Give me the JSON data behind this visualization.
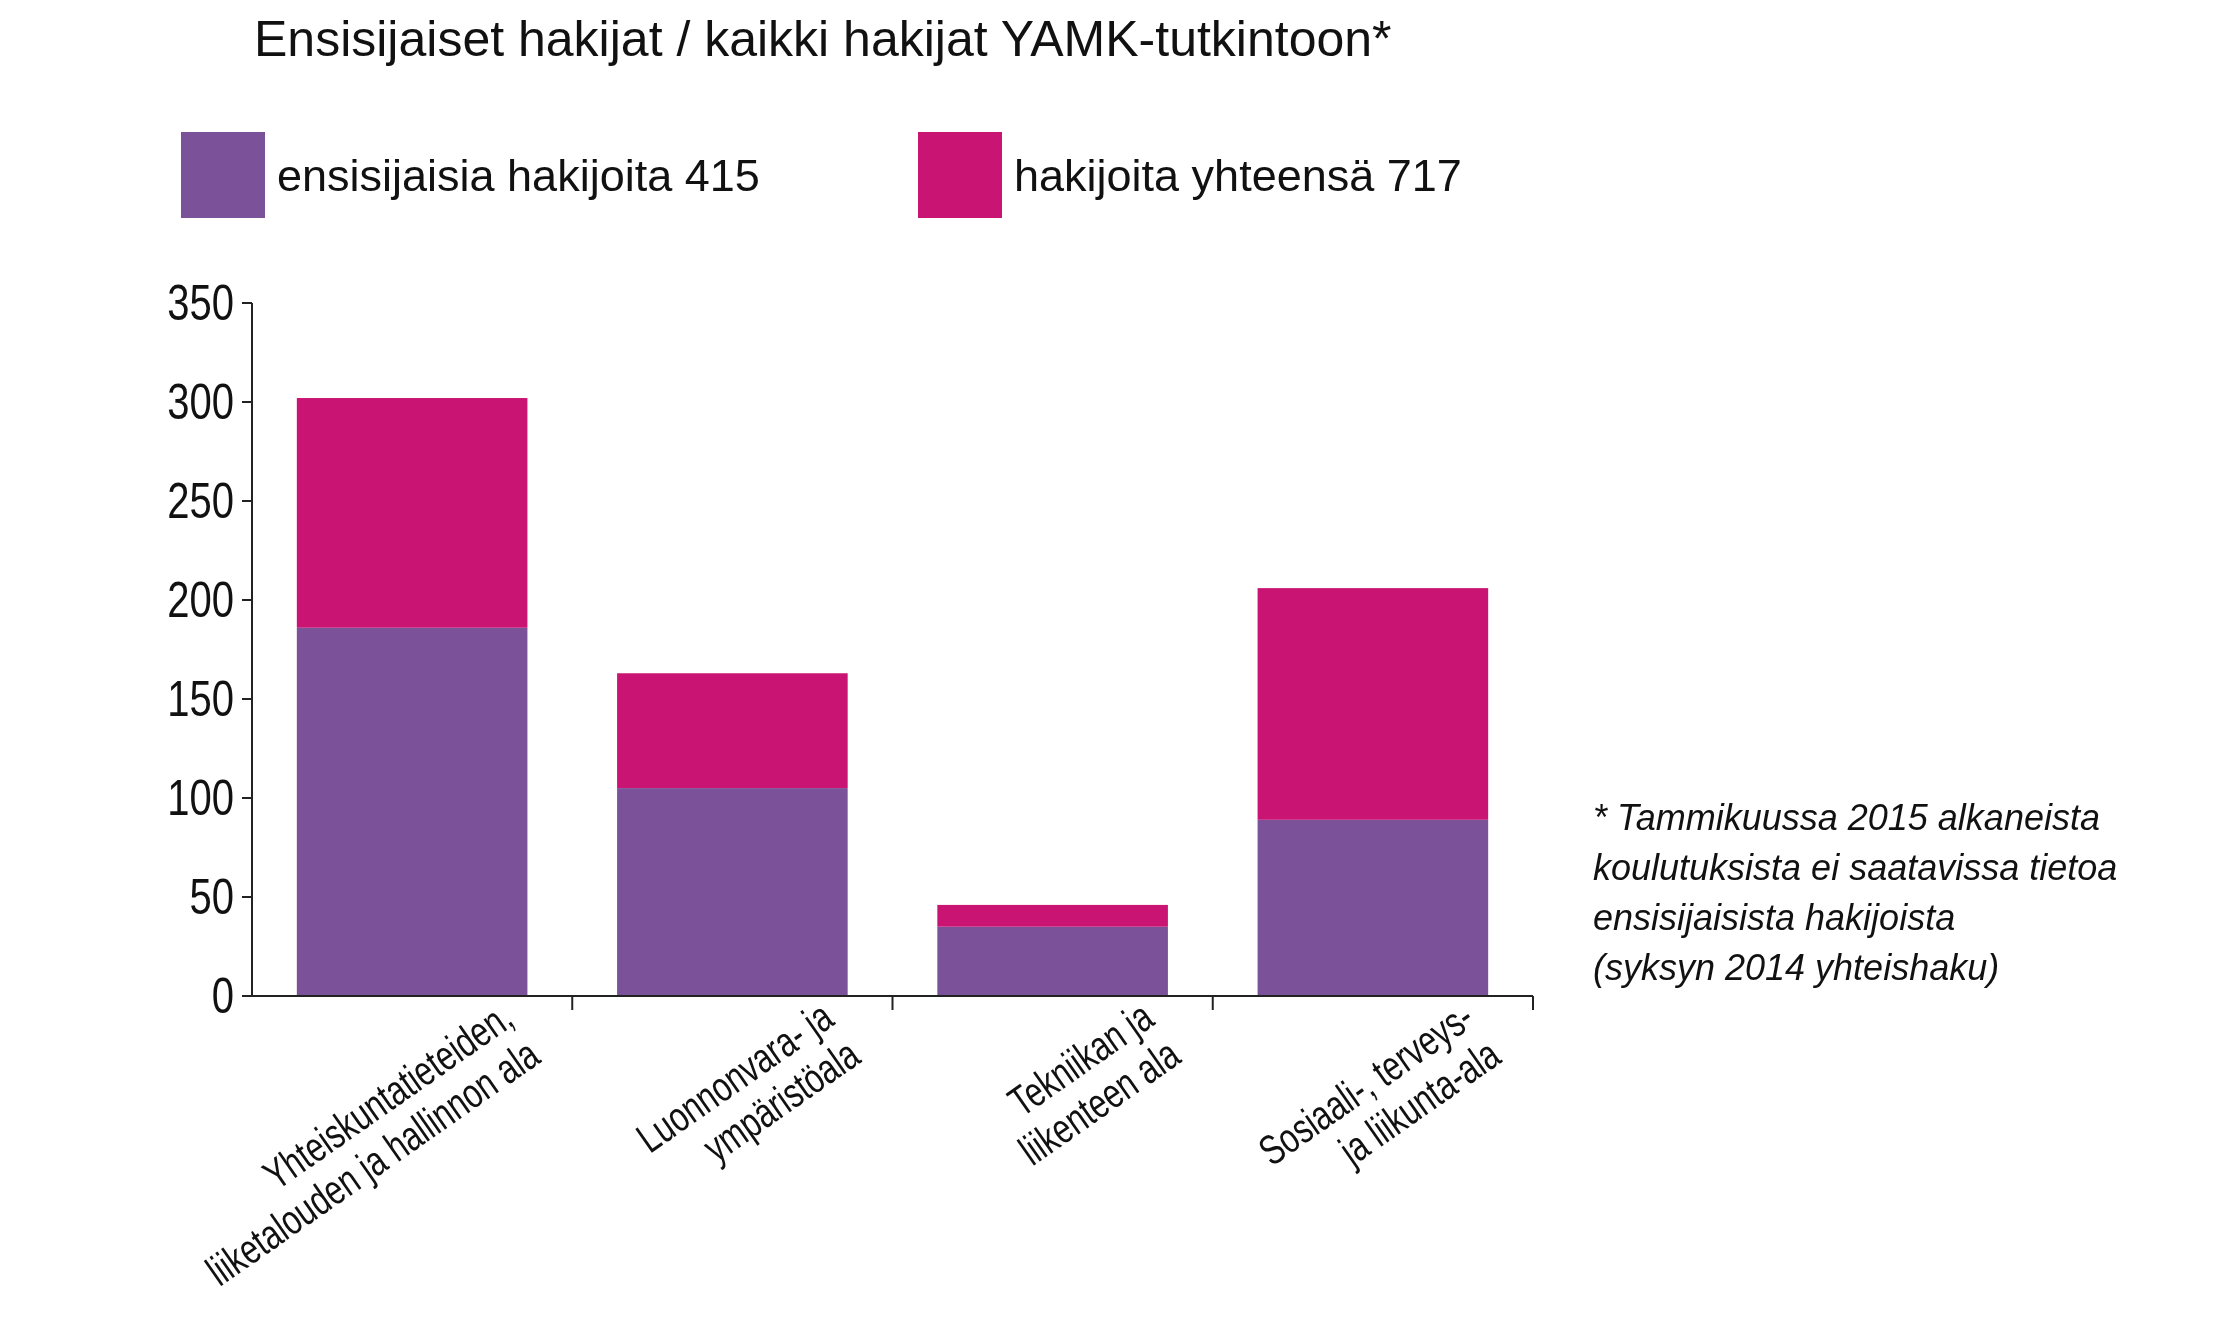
{
  "chart_data": {
    "type": "bar",
    "title": "Ensisijaiset hakijat / kaikki hakijat YAMK-tutkintoon*",
    "categories": [
      "Yhteiskuntatieteiden,\nliiketalouden ja hallinnon ala",
      "Luonnonvara- ja\nympäristöala",
      "Tekniikan ja\nliikenteen ala",
      "Sosiaali-, terveys-\nja liikunta-ala"
    ],
    "stacked": true,
    "series": [
      {
        "name": "ensisijaisia hakijoita 415",
        "color": "#7b5299",
        "values": [
          186,
          105,
          35,
          89
        ]
      },
      {
        "name": "hakijoita yhteensä 717",
        "color": "#c91473",
        "values": [
          116,
          58,
          11,
          117
        ]
      }
    ],
    "ylim": [
      0,
      350
    ],
    "yticks": [
      0,
      50,
      100,
      150,
      200,
      250,
      300,
      350
    ],
    "grid": false,
    "legend": "top left",
    "annotations": [
      "* Tammikuussa 2015 alkaneista\nkoulutuksista ei saatavissa tietoa\nensisijaisista hakijoista\n(syksyn 2014 yhteishaku)"
    ]
  }
}
